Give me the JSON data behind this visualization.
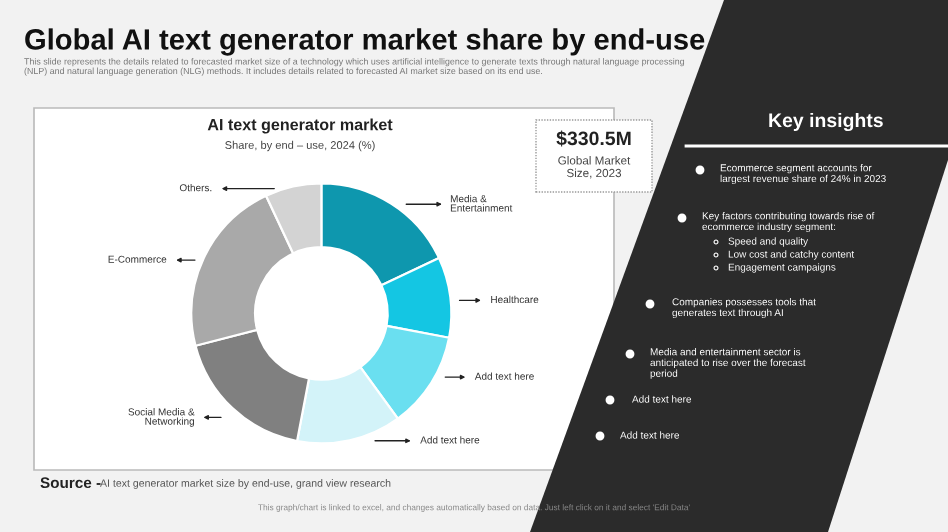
{
  "chart_data": {
    "type": "donut",
    "title": "Global AI text generator market share by end-use",
    "subtitle": "This slide represents the details related to forecasted market size of a technology which uses artificial intelligence to generate texts through natural language processing (NLP) and natural language generation (NLG) methods. It includes details related to forecasted AI market size based on its end use.",
    "categories": [
      "Media & Entertainment",
      "Healthcare",
      "Add text here",
      "Add text here",
      "Social Media & Networking",
      "E-Commerce",
      "Others."
    ],
    "values": [
      18,
      10,
      12,
      13,
      18,
      22,
      7
    ],
    "colors": [
      "#0e97ae",
      "#14c6e3",
      "#6adff0",
      "#d3f3f9",
      "#808080",
      "#a9a9a9",
      "#d3d3d3"
    ],
    "annotations": [
      "AI text generator market",
      "Share, by end – use, 2024 (%)",
      "$330.5M",
      "Global Market Size, 2023",
      "Key insights",
      "Ecommerce segment accounts for largest revenue share of 24% in 2023",
      "Key factors contributing towards rise of ecommerce industry segment:",
      "Speed and quality",
      "Low cost and catchy content",
      "Engagement campaigns",
      "Companies possesses tools that generates text through AI",
      "Media and entertainment sector is anticipated to rise over the forecast period",
      "Add text here",
      "Add text here",
      "Source -",
      "AI text generator market size by end-use, grand view research",
      "This graph/chart is linked to excel, and changes automatically based on data. Just left click on it and select 'Edit Data'"
    ]
  }
}
